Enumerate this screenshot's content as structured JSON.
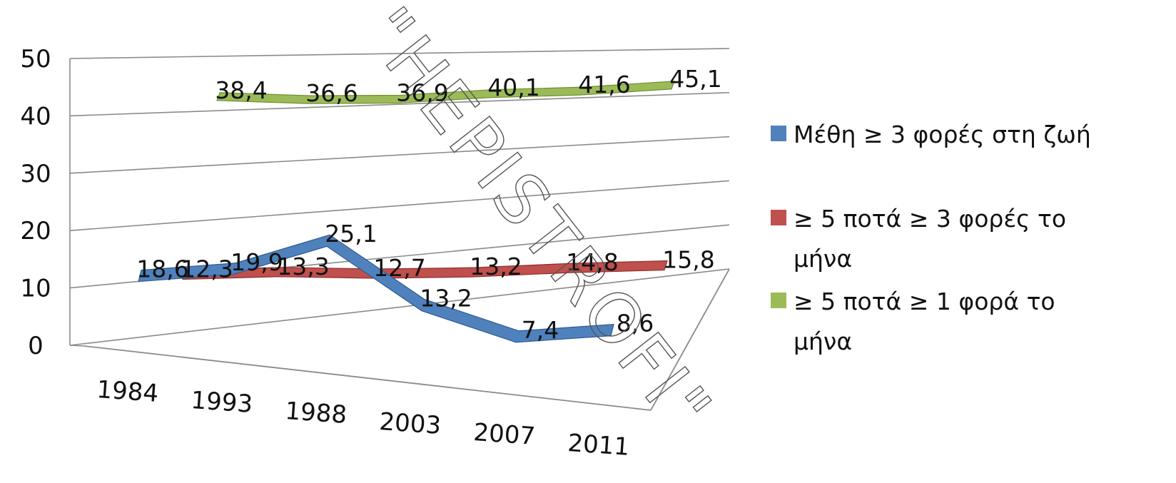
{
  "watermark": "\"HEPISTROFI\"",
  "colors": {
    "series": [
      "#4f81bd",
      "#c0504d",
      "#9bbb59"
    ],
    "series_dark": [
      "#2f5b8f",
      "#8e2f2d",
      "#6f8e2f"
    ],
    "grid": "#8a8a8a"
  },
  "chart_data": {
    "type": "line",
    "three_d": true,
    "categories": [
      "1984",
      "1993",
      "1988",
      "2003",
      "2007",
      "2011"
    ],
    "ylim": [
      0,
      50
    ],
    "yticks": [
      "0",
      "10",
      "20",
      "30",
      "40",
      "50"
    ],
    "grid": true,
    "legend_position": "right",
    "series": [
      {
        "name": "Μέθη ≥ 3 φορές στη ζωή",
        "values": [
          18.6,
          19.9,
          25.1,
          13.2,
          7.4,
          8.6
        ],
        "labels": [
          "18,6",
          "19,9",
          "25,1",
          "13,2",
          "7,4",
          "8,6"
        ]
      },
      {
        "name": "≥ 5 ποτά ≥ 3 φορές το μήνα",
        "values": [
          12.3,
          13.3,
          12.7,
          13.2,
          14.8,
          15.8
        ],
        "labels": [
          "12,3",
          "13,3",
          "12,7",
          "13,2",
          "14,8",
          "15,8"
        ]
      },
      {
        "name": "≥ 5 ποτά ≥ 1 φορά το μήνα",
        "values": [
          38.4,
          36.6,
          36.9,
          40.1,
          41.6,
          45.1
        ],
        "labels": [
          "38,4",
          "36,6",
          "36,9",
          "40,1",
          "41,6",
          "45,1"
        ]
      }
    ],
    "legend_lines": [
      [
        "Μέθη ≥ 3 φορές στη ζωή"
      ],
      [
        "≥ 5 ποτά ≥ 3 φορές το",
        "μήνα"
      ],
      [
        "≥ 5 ποτά ≥ 1 φορά το",
        "μήνα"
      ]
    ]
  }
}
